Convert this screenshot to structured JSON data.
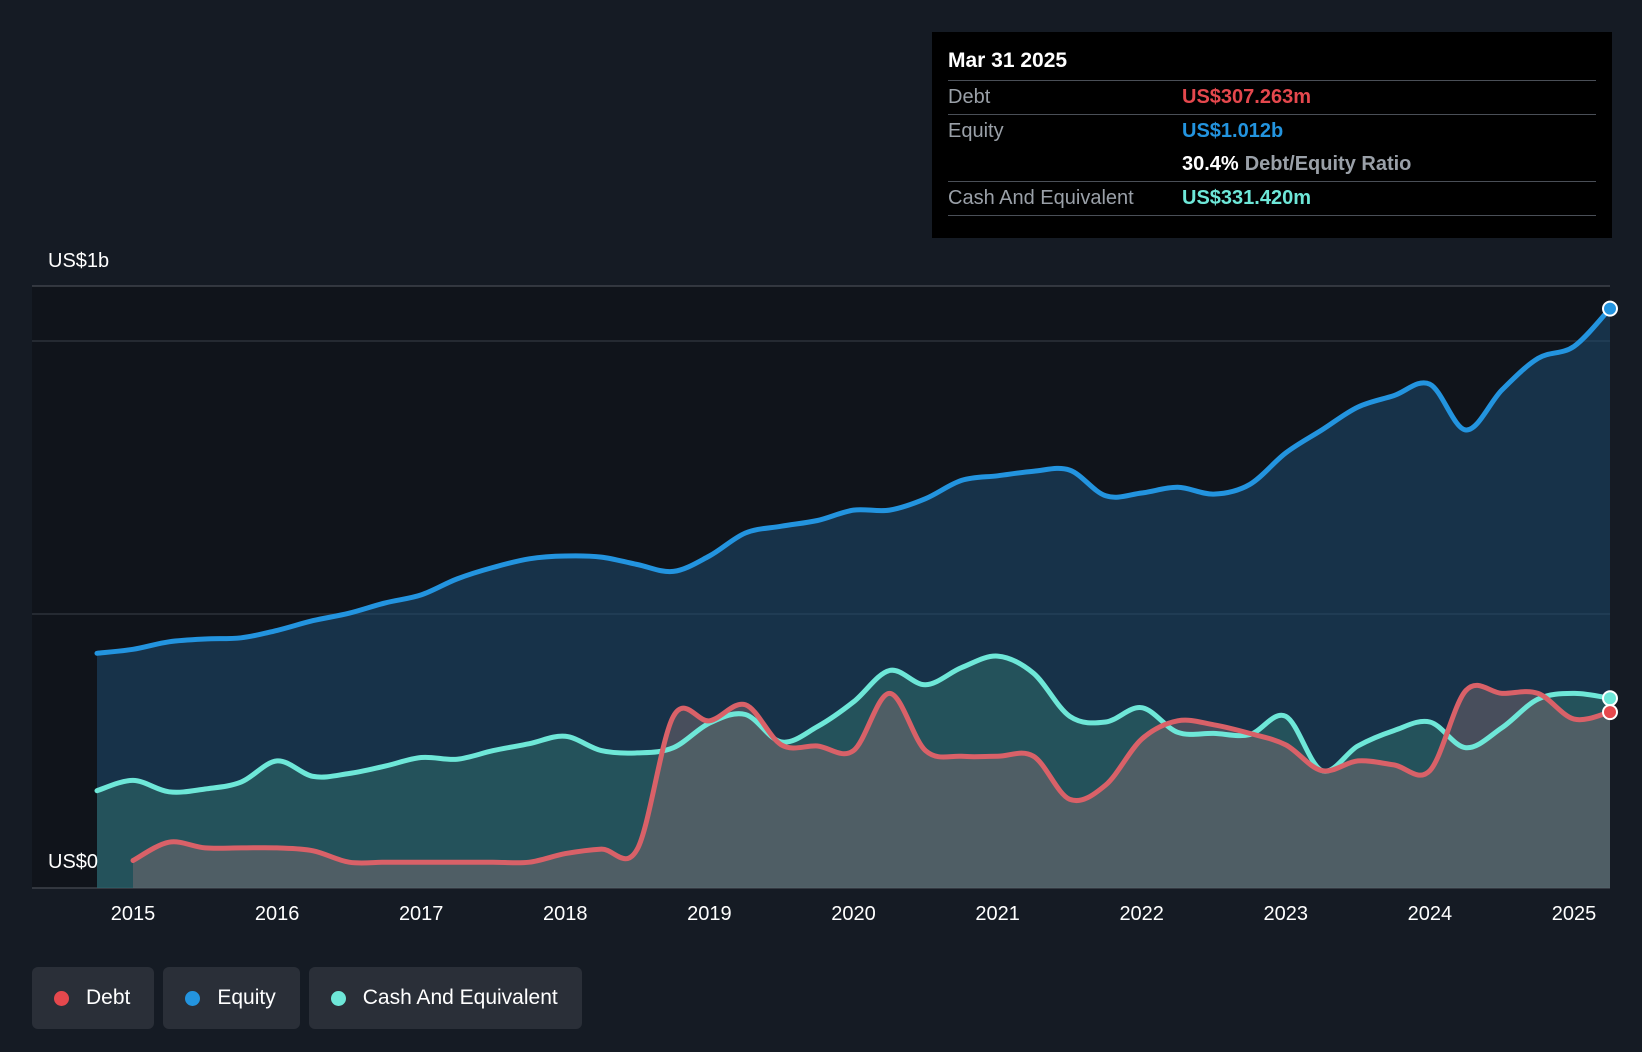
{
  "tooltip": {
    "date": "Mar 31 2025",
    "debt_label": "Debt",
    "debt_value": "US$307.263m",
    "equity_label": "Equity",
    "equity_value": "US$1.012b",
    "ratio_value": "30.4%",
    "ratio_label": "Debt/Equity Ratio",
    "cash_label": "Cash And Equivalent",
    "cash_value": "US$331.420m"
  },
  "axis": {
    "y_top_label": "US$1b",
    "y_bottom_label": "US$0"
  },
  "legend": {
    "debt": "Debt",
    "equity": "Equity",
    "cash": "Cash And Equivalent"
  },
  "colors": {
    "debt": "#e5484d",
    "equity": "#2394df",
    "cash": "#6ee7d8",
    "background": "#151b24"
  },
  "chart_data": {
    "type": "area",
    "x_ticks": [
      "2015",
      "2016",
      "2017",
      "2018",
      "2019",
      "2020",
      "2021",
      "2022",
      "2023",
      "2024",
      "2025"
    ],
    "ylim": [
      0,
      1100
    ],
    "y_unit": "US$ millions",
    "series": [
      {
        "name": "Equity",
        "points": [
          [
            2014.75,
            410
          ],
          [
            2015.0,
            417
          ],
          [
            2015.25,
            430
          ],
          [
            2015.5,
            435
          ],
          [
            2015.75,
            437
          ],
          [
            2016.0,
            450
          ],
          [
            2016.25,
            467
          ],
          [
            2016.5,
            480
          ],
          [
            2016.75,
            498
          ],
          [
            2017.0,
            512
          ],
          [
            2017.25,
            540
          ],
          [
            2017.5,
            560
          ],
          [
            2017.75,
            575
          ],
          [
            2018.0,
            580
          ],
          [
            2018.25,
            578
          ],
          [
            2018.5,
            565
          ],
          [
            2018.75,
            553
          ],
          [
            2019.0,
            580
          ],
          [
            2019.25,
            620
          ],
          [
            2019.5,
            632
          ],
          [
            2019.75,
            642
          ],
          [
            2020.0,
            660
          ],
          [
            2020.25,
            660
          ],
          [
            2020.5,
            680
          ],
          [
            2020.75,
            712
          ],
          [
            2021.0,
            720
          ],
          [
            2021.25,
            728
          ],
          [
            2021.5,
            730
          ],
          [
            2021.75,
            685
          ],
          [
            2022.0,
            690
          ],
          [
            2022.25,
            700
          ],
          [
            2022.5,
            688
          ],
          [
            2022.75,
            705
          ],
          [
            2023.0,
            760
          ],
          [
            2023.25,
            800
          ],
          [
            2023.5,
            840
          ],
          [
            2023.75,
            860
          ],
          [
            2024.0,
            880
          ],
          [
            2024.25,
            800
          ],
          [
            2024.5,
            870
          ],
          [
            2024.75,
            925
          ],
          [
            2025.0,
            946
          ],
          [
            2025.25,
            1012
          ]
        ]
      },
      {
        "name": "Cash And Equivalent",
        "points": [
          [
            2014.75,
            170
          ],
          [
            2015.0,
            188
          ],
          [
            2015.25,
            168
          ],
          [
            2015.5,
            173
          ],
          [
            2015.75,
            185
          ],
          [
            2016.0,
            222
          ],
          [
            2016.25,
            195
          ],
          [
            2016.5,
            200
          ],
          [
            2016.75,
            213
          ],
          [
            2017.0,
            228
          ],
          [
            2017.25,
            225
          ],
          [
            2017.5,
            240
          ],
          [
            2017.75,
            252
          ],
          [
            2018.0,
            265
          ],
          [
            2018.25,
            240
          ],
          [
            2018.5,
            236
          ],
          [
            2018.75,
            245
          ],
          [
            2019.0,
            288
          ],
          [
            2019.25,
            303
          ],
          [
            2019.5,
            255
          ],
          [
            2019.75,
            282
          ],
          [
            2020.0,
            325
          ],
          [
            2020.25,
            380
          ],
          [
            2020.5,
            355
          ],
          [
            2020.75,
            385
          ],
          [
            2021.0,
            405
          ],
          [
            2021.25,
            375
          ],
          [
            2021.5,
            300
          ],
          [
            2021.75,
            290
          ],
          [
            2022.0,
            315
          ],
          [
            2022.25,
            272
          ],
          [
            2022.5,
            270
          ],
          [
            2022.75,
            268
          ],
          [
            2023.0,
            300
          ],
          [
            2023.25,
            205
          ],
          [
            2023.5,
            248
          ],
          [
            2023.75,
            275
          ],
          [
            2024.0,
            290
          ],
          [
            2024.25,
            245
          ],
          [
            2024.5,
            280
          ],
          [
            2024.75,
            330
          ],
          [
            2025.0,
            340
          ],
          [
            2025.25,
            331.42
          ]
        ]
      },
      {
        "name": "Debt",
        "points": [
          [
            2015.0,
            48
          ],
          [
            2015.25,
            80
          ],
          [
            2015.5,
            70
          ],
          [
            2015.75,
            70
          ],
          [
            2016.0,
            70
          ],
          [
            2016.25,
            65
          ],
          [
            2016.5,
            45
          ],
          [
            2016.75,
            45
          ],
          [
            2017.0,
            45
          ],
          [
            2017.25,
            45
          ],
          [
            2017.5,
            45
          ],
          [
            2017.75,
            45
          ],
          [
            2018.0,
            60
          ],
          [
            2018.25,
            68
          ],
          [
            2018.5,
            68
          ],
          [
            2018.75,
            300
          ],
          [
            2019.0,
            292
          ],
          [
            2019.25,
            320
          ],
          [
            2019.5,
            250
          ],
          [
            2019.75,
            248
          ],
          [
            2020.0,
            240
          ],
          [
            2020.25,
            340
          ],
          [
            2020.5,
            240
          ],
          [
            2020.75,
            230
          ],
          [
            2021.0,
            230
          ],
          [
            2021.25,
            230
          ],
          [
            2021.5,
            155
          ],
          [
            2021.75,
            180
          ],
          [
            2022.0,
            260
          ],
          [
            2022.25,
            292
          ],
          [
            2022.5,
            285
          ],
          [
            2022.75,
            270
          ],
          [
            2023.0,
            250
          ],
          [
            2023.25,
            205
          ],
          [
            2023.5,
            222
          ],
          [
            2023.75,
            215
          ],
          [
            2024.0,
            205
          ],
          [
            2024.25,
            345
          ],
          [
            2024.5,
            340
          ],
          [
            2024.75,
            340
          ],
          [
            2025.0,
            295
          ],
          [
            2025.25,
            307.263
          ]
        ]
      }
    ]
  }
}
